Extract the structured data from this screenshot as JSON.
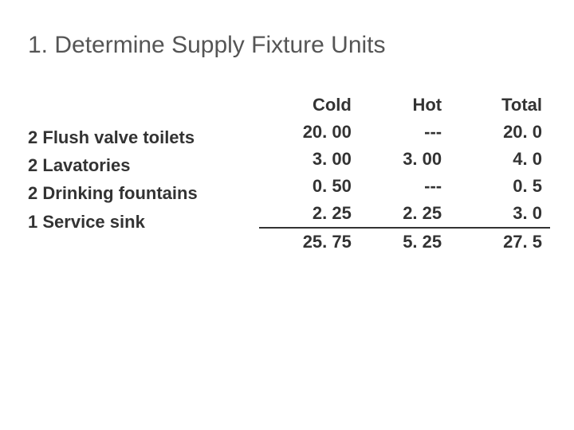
{
  "slide": {
    "title": "1. Determine Supply Fixture Units",
    "fixtures": [
      {
        "qty": "2",
        "label": "Flush valve toilets"
      },
      {
        "qty": "2",
        "label": "Lavatories"
      },
      {
        "qty": "2",
        "label": "Drinking fountains"
      },
      {
        "qty": "1",
        "label": "Service sink"
      }
    ],
    "table": {
      "headers": {
        "cold": "Cold",
        "hot": "Hot",
        "total": "Total"
      },
      "rows": [
        {
          "cold": "20. 00",
          "hot": "---",
          "total": "20. 0"
        },
        {
          "cold": "3. 00",
          "hot": "3. 00",
          "total": "4. 0"
        },
        {
          "cold": "0. 50",
          "hot": "---",
          "total": "0. 5"
        },
        {
          "cold": "2. 25",
          "hot": "2. 25",
          "total": "3. 0"
        }
      ],
      "sums": {
        "cold": "25. 75",
        "hot": "5. 25",
        "total": "27. 5"
      }
    },
    "style": {
      "title_fontsize": 30,
      "body_fontsize": 22,
      "title_color": "#555555",
      "text_color": "#333333",
      "background_color": "#ffffff",
      "font_family": "Verdana",
      "underline_last_data_row": true
    }
  }
}
